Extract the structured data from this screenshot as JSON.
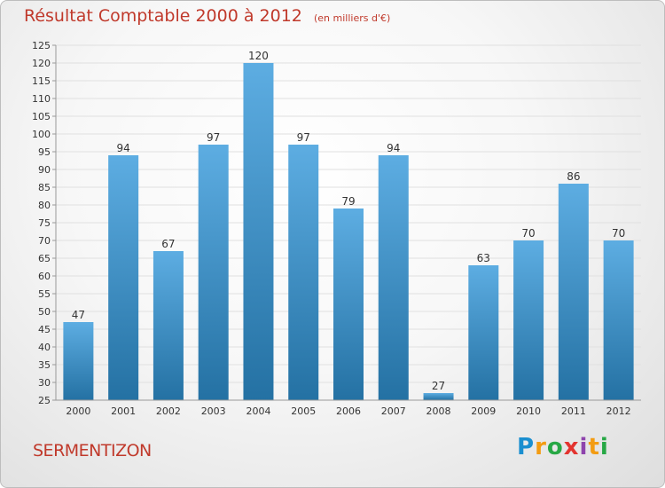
{
  "title": "Résultat Comptable 2000 à 2012",
  "subtitle": "(en milliers d'€)",
  "commune": "SERMENTIZON",
  "brand": {
    "letters": [
      "P",
      "r",
      "o",
      "x",
      "i",
      "t",
      "i"
    ],
    "colors": [
      "#1b8fd0",
      "#f39c12",
      "#27a845",
      "#e3342f",
      "#8e44ad",
      "#f39c12",
      "#27a845"
    ]
  },
  "colors": {
    "bar_top": "#5dade2",
    "bar_bottom": "#2471a3",
    "title": "#c0392b",
    "grid": "#e0e0e0",
    "axis_text": "#333333"
  },
  "chart_data": {
    "type": "bar",
    "categories": [
      "2000",
      "2001",
      "2002",
      "2003",
      "2004",
      "2005",
      "2006",
      "2007",
      "2008",
      "2009",
      "2010",
      "2011",
      "2012"
    ],
    "values": [
      47,
      94,
      67,
      97,
      120,
      97,
      79,
      94,
      27,
      63,
      70,
      86,
      70
    ],
    "title": "Résultat Comptable 2000 à 2012",
    "subtitle": "(en milliers d'€)",
    "xlabel": "",
    "ylabel": "",
    "ylim": [
      25,
      125
    ],
    "yticks": [
      25,
      30,
      35,
      40,
      45,
      50,
      55,
      60,
      65,
      70,
      75,
      80,
      85,
      90,
      95,
      100,
      105,
      110,
      115,
      120,
      125
    ],
    "grid": true,
    "legend": "none"
  }
}
